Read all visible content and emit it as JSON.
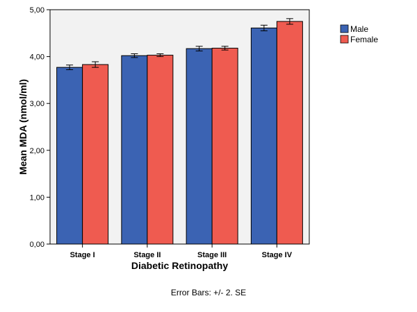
{
  "chart_data": {
    "type": "bar",
    "categories": [
      "Stage I",
      "Stage II",
      "Stage III",
      "Stage IV"
    ],
    "series": [
      {
        "name": "Male",
        "color": "#3b63b3",
        "values": [
          3.77,
          4.02,
          4.17,
          4.61
        ],
        "error": [
          0.05,
          0.04,
          0.05,
          0.06
        ]
      },
      {
        "name": "Female",
        "color": "#ef5b50",
        "values": [
          3.83,
          4.03,
          4.18,
          4.75
        ],
        "error": [
          0.06,
          0.03,
          0.04,
          0.06
        ]
      }
    ],
    "xlabel": "Diabetic Retinopathy",
    "ylabel": "Mean MDA (nmol/ml)",
    "ylim": [
      0,
      5
    ],
    "yticks": [
      "0,00",
      "1,00",
      "2,00",
      "3,00",
      "4,00",
      "5,00"
    ],
    "legend_position": "top-right",
    "note": "Error Bars:  +/- 2. SE",
    "plot_background": "#f2f2f2"
  }
}
